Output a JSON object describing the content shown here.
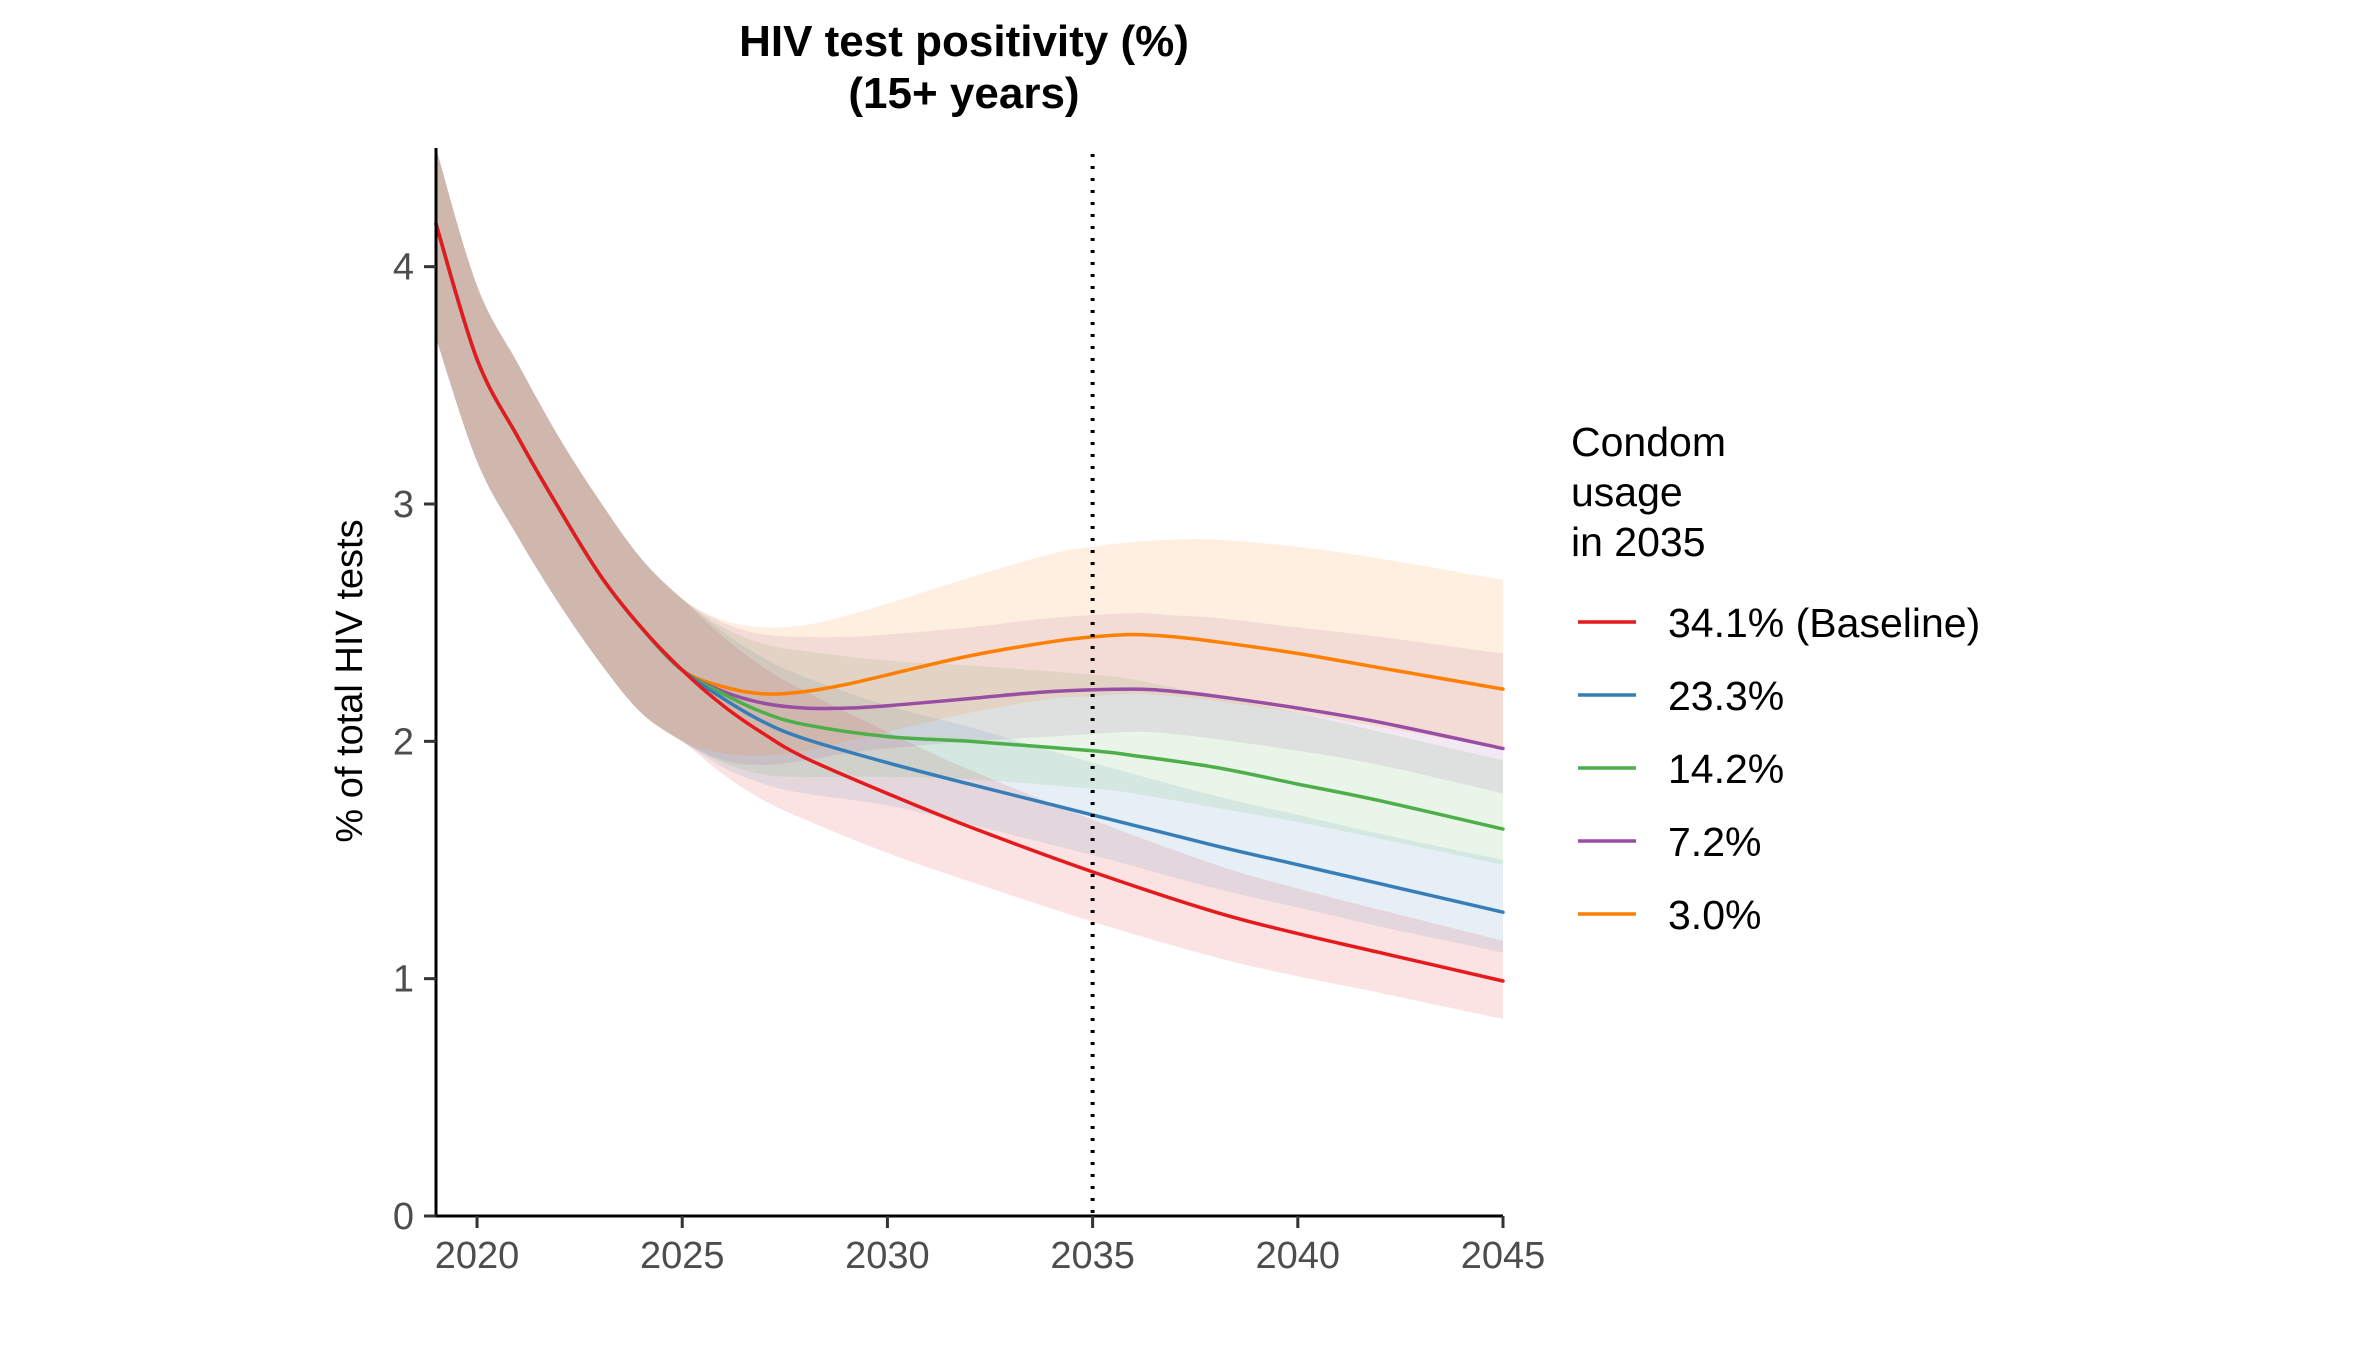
{
  "chart_data": {
    "type": "line",
    "title": [
      "HIV test positivity (%)",
      "(15+ years)"
    ],
    "ylabel": "% of total HIV tests",
    "xlabel": "",
    "xlim": [
      2019,
      2045
    ],
    "ylim": [
      0,
      4.5
    ],
    "xticks": [
      2020,
      2025,
      2030,
      2035,
      2040,
      2045
    ],
    "yticks": [
      0,
      1,
      2,
      3,
      4
    ],
    "reference_line": {
      "x": 2035,
      "style": "dotted"
    },
    "legend": {
      "title": [
        "Condom",
        "usage",
        "in 2035"
      ],
      "position": "right"
    },
    "grid": false,
    "series": [
      {
        "name": "34.1% (Baseline)",
        "color": "#e41a1c",
        "x": [
          2019,
          2020,
          2021,
          2022,
          2023,
          2024,
          2025,
          2026,
          2027,
          2028,
          2030,
          2032,
          2035,
          2038,
          2040,
          2042,
          2045
        ],
        "values": [
          4.18,
          3.61,
          3.28,
          2.98,
          2.7,
          2.48,
          2.3,
          2.15,
          2.03,
          1.93,
          1.78,
          1.64,
          1.45,
          1.28,
          1.19,
          1.11,
          0.99
        ],
        "lower": [
          3.7,
          3.18,
          2.86,
          2.58,
          2.33,
          2.12,
          2.0,
          1.86,
          1.75,
          1.67,
          1.53,
          1.41,
          1.24,
          1.09,
          1.01,
          0.94,
          0.83
        ],
        "upper": [
          4.5,
          3.92,
          3.59,
          3.28,
          3.01,
          2.77,
          2.6,
          2.44,
          2.31,
          2.21,
          2.04,
          1.88,
          1.67,
          1.48,
          1.38,
          1.29,
          1.16
        ]
      },
      {
        "name": "23.3%",
        "color": "#377eb8",
        "x": [
          2019,
          2020,
          2021,
          2022,
          2023,
          2024,
          2025,
          2026,
          2027,
          2028,
          2030,
          2032,
          2035,
          2038,
          2040,
          2042,
          2045
        ],
        "values": [
          4.18,
          3.61,
          3.28,
          2.98,
          2.7,
          2.48,
          2.3,
          2.18,
          2.08,
          2.01,
          1.91,
          1.82,
          1.69,
          1.56,
          1.48,
          1.4,
          1.28
        ],
        "lower": [
          3.7,
          3.18,
          2.86,
          2.58,
          2.33,
          2.12,
          2.0,
          1.89,
          1.82,
          1.78,
          1.73,
          1.65,
          1.52,
          1.38,
          1.3,
          1.22,
          1.11
        ],
        "upper": [
          4.5,
          3.92,
          3.59,
          3.28,
          3.01,
          2.77,
          2.6,
          2.46,
          2.35,
          2.27,
          2.15,
          2.06,
          1.91,
          1.77,
          1.69,
          1.61,
          1.5
        ]
      },
      {
        "name": "14.2%",
        "color": "#4daf4a",
        "x": [
          2019,
          2020,
          2021,
          2022,
          2023,
          2024,
          2025,
          2026,
          2027,
          2028,
          2030,
          2032,
          2035,
          2036,
          2038,
          2040,
          2042,
          2045
        ],
        "values": [
          4.18,
          3.61,
          3.28,
          2.98,
          2.7,
          2.48,
          2.3,
          2.2,
          2.12,
          2.07,
          2.02,
          2.0,
          1.96,
          1.94,
          1.89,
          1.82,
          1.75,
          1.63
        ],
        "lower": [
          3.7,
          3.18,
          2.86,
          2.58,
          2.33,
          2.12,
          2.0,
          1.91,
          1.86,
          1.85,
          1.85,
          1.84,
          1.8,
          1.78,
          1.72,
          1.66,
          1.59,
          1.48
        ],
        "upper": [
          4.5,
          3.92,
          3.59,
          3.28,
          3.01,
          2.77,
          2.6,
          2.48,
          2.41,
          2.38,
          2.34,
          2.32,
          2.28,
          2.26,
          2.19,
          2.12,
          2.04,
          1.92
        ]
      },
      {
        "name": "7.2%",
        "color": "#984ea3",
        "x": [
          2019,
          2020,
          2021,
          2022,
          2023,
          2024,
          2025,
          2026,
          2027,
          2028,
          2029,
          2030,
          2032,
          2034,
          2036,
          2037,
          2038,
          2040,
          2042,
          2045
        ],
        "values": [
          4.18,
          3.61,
          3.28,
          2.98,
          2.7,
          2.48,
          2.3,
          2.21,
          2.16,
          2.14,
          2.14,
          2.15,
          2.18,
          2.21,
          2.22,
          2.21,
          2.19,
          2.14,
          2.08,
          1.97
        ],
        "lower": [
          3.7,
          3.18,
          2.86,
          2.58,
          2.33,
          2.12,
          2.0,
          1.92,
          1.9,
          1.92,
          1.95,
          1.97,
          2.0,
          2.02,
          2.04,
          2.03,
          2.01,
          1.96,
          1.9,
          1.78
        ],
        "upper": [
          4.5,
          3.92,
          3.59,
          3.28,
          3.01,
          2.77,
          2.6,
          2.5,
          2.45,
          2.44,
          2.44,
          2.45,
          2.48,
          2.52,
          2.54,
          2.53,
          2.52,
          2.48,
          2.44,
          2.37
        ]
      },
      {
        "name": "3.0%",
        "color": "#ff7f00",
        "x": [
          2019,
          2020,
          2021,
          2022,
          2023,
          2024,
          2025,
          2026,
          2027,
          2028,
          2029,
          2030,
          2032,
          2034,
          2035,
          2036,
          2037,
          2038,
          2040,
          2042,
          2045
        ],
        "values": [
          4.18,
          3.61,
          3.28,
          2.98,
          2.7,
          2.48,
          2.3,
          2.23,
          2.2,
          2.21,
          2.24,
          2.28,
          2.36,
          2.42,
          2.44,
          2.45,
          2.44,
          2.42,
          2.37,
          2.31,
          2.22
        ],
        "lower": [
          3.7,
          3.18,
          2.86,
          2.58,
          2.33,
          2.12,
          2.0,
          1.95,
          1.94,
          1.96,
          2.0,
          2.04,
          2.12,
          2.18,
          2.19,
          2.2,
          2.19,
          2.17,
          2.12,
          2.06,
          1.97
        ],
        "upper": [
          4.5,
          3.92,
          3.59,
          3.28,
          3.01,
          2.77,
          2.6,
          2.51,
          2.48,
          2.49,
          2.53,
          2.58,
          2.69,
          2.79,
          2.82,
          2.84,
          2.85,
          2.85,
          2.82,
          2.77,
          2.68
        ]
      }
    ]
  }
}
